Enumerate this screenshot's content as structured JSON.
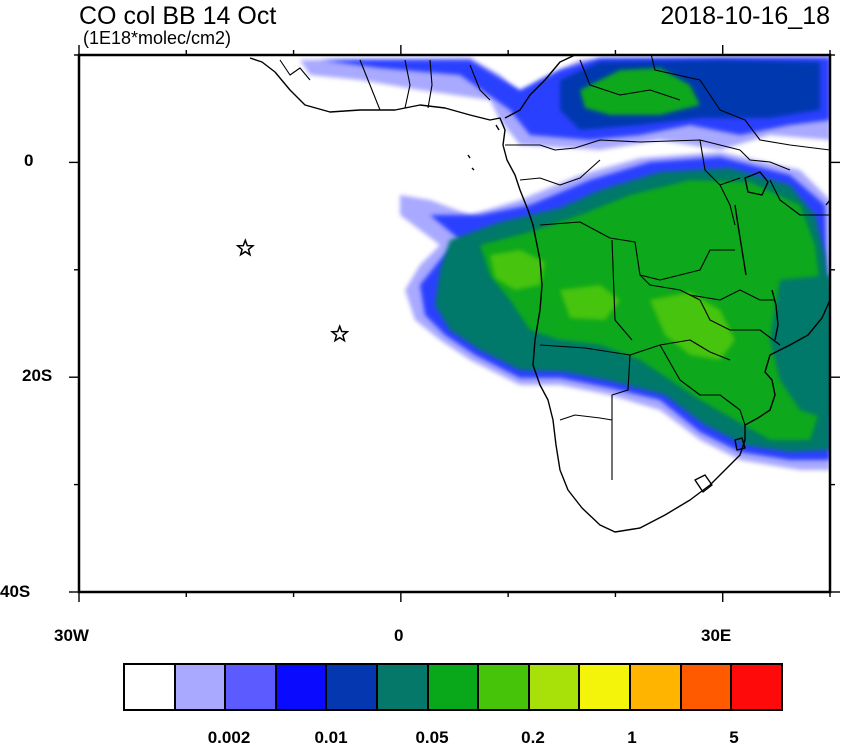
{
  "header": {
    "title": "CO col BB 14 Oct",
    "units": "(1E18*molec/cm2)",
    "datetime": "2018-10-16_18"
  },
  "axes": {
    "lat_ticks": [
      "0",
      "20S",
      "40S"
    ],
    "lon_ticks": [
      "30W",
      "0",
      "30E"
    ],
    "lon_range": [
      -30,
      40
    ],
    "lat_range": [
      -40,
      10
    ]
  },
  "markers": [
    {
      "name": "star-1",
      "lon": -14.5,
      "lat": -8
    },
    {
      "name": "star-2",
      "lon": -5.7,
      "lat": -16
    }
  ],
  "colorbar": {
    "colors": [
      "#ffffff",
      "#a9a9ff",
      "#5b5bff",
      "#0a0aff",
      "#0537b0",
      "#05786a",
      "#08a81a",
      "#46c40a",
      "#a8e00a",
      "#f4f40a",
      "#ffb400",
      "#ff5a00",
      "#ff0a0a"
    ],
    "labels": [
      "0.002",
      "0.01",
      "0.05",
      "0.2",
      "1",
      "5"
    ]
  }
}
